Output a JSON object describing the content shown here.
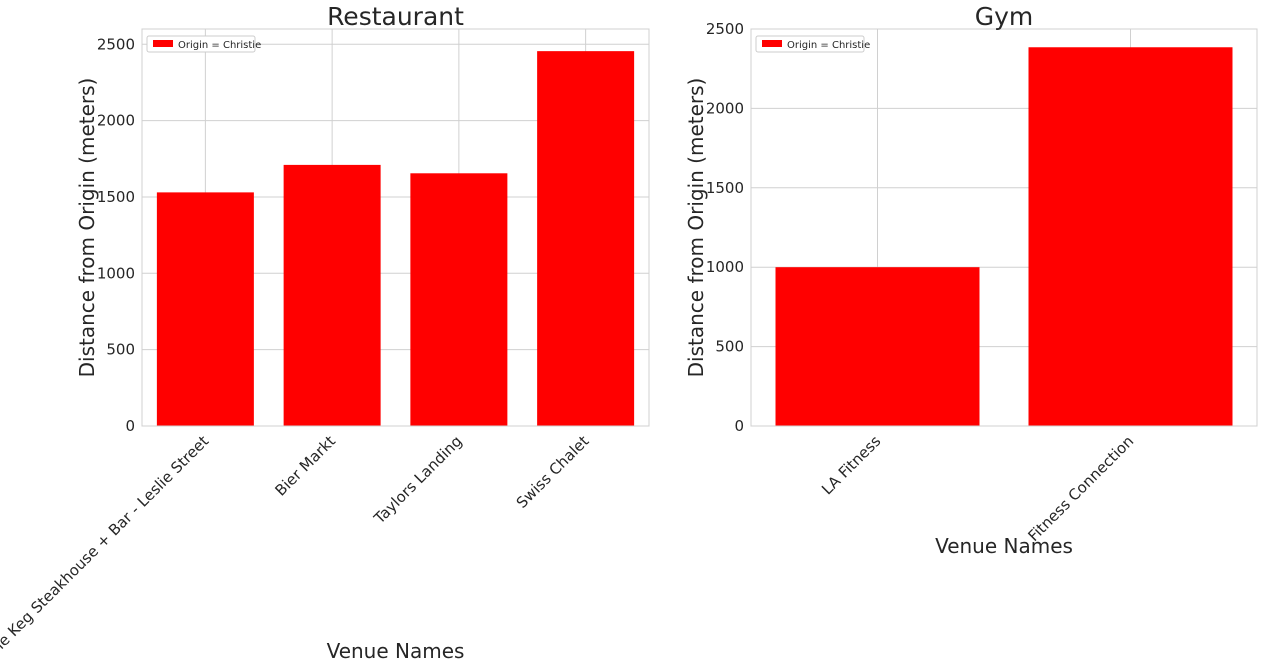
{
  "chart_data": [
    {
      "type": "bar",
      "title": "Restaurant",
      "categories": [
        "The Keg Steakhouse + Bar - Leslie Street",
        "Bier Markt",
        "Taylors Landing",
        "Swiss Chalet"
      ],
      "series": [
        {
          "name": "Origin = Christie",
          "values": [
            1530,
            1710,
            1655,
            2455
          ],
          "color": "#ff0000"
        }
      ],
      "xlabel": "Venue Names",
      "ylabel": "Distance from Origin (meters)",
      "ylim": [
        0,
        2600
      ],
      "yticks": [
        0,
        500,
        1000,
        1500,
        2000,
        2500
      ],
      "grid": true,
      "legend": "top-left"
    },
    {
      "type": "bar",
      "title": "Gym",
      "categories": [
        "LA Fitness",
        "Fitness Connection"
      ],
      "series": [
        {
          "name": "Origin = Christie",
          "values": [
            1000,
            2385
          ],
          "color": "#ff0000"
        }
      ],
      "xlabel": "Venue Names",
      "ylabel": "Distance from Origin (meters)",
      "ylim": [
        0,
        2500
      ],
      "yticks": [
        0,
        500,
        1000,
        1500,
        2000,
        2500
      ],
      "grid": true,
      "legend": "top-left"
    }
  ]
}
